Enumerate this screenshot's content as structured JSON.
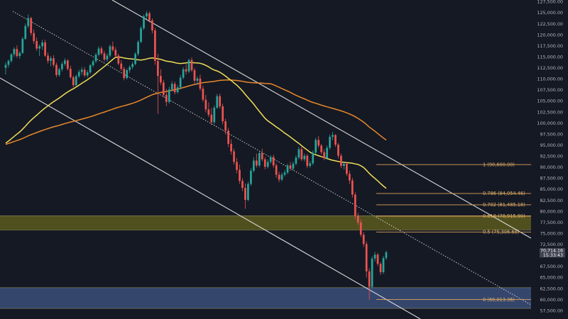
{
  "chart_data": {
    "type": "candlestick",
    "title": "",
    "xlabel": "",
    "ylabel": "",
    "ylim": [
      55600,
      127900
    ],
    "y_ticks": [
      {
        "value": 127500,
        "label": "127,500.00"
      },
      {
        "value": 125000,
        "label": "125,000.00"
      },
      {
        "value": 122500,
        "label": "122,500.00"
      },
      {
        "value": 120000,
        "label": "120,000.00"
      },
      {
        "value": 117500,
        "label": "117,500.00"
      },
      {
        "value": 115000,
        "label": "115,000.00"
      },
      {
        "value": 112500,
        "label": "112,500.00"
      },
      {
        "value": 110000,
        "label": "110,000.00"
      },
      {
        "value": 107500,
        "label": "107,500.00"
      },
      {
        "value": 105000,
        "label": "105,000.00"
      },
      {
        "value": 102500,
        "label": "102,500.00"
      },
      {
        "value": 100000,
        "label": "100,000.00"
      },
      {
        "value": 97500,
        "label": "97,500.00"
      },
      {
        "value": 95000,
        "label": "95,000.00"
      },
      {
        "value": 92500,
        "label": "92,500.00"
      },
      {
        "value": 90000,
        "label": "90,000.00"
      },
      {
        "value": 87500,
        "label": "87,500.00"
      },
      {
        "value": 85000,
        "label": "85,000.00"
      },
      {
        "value": 82500,
        "label": "82,500.00"
      },
      {
        "value": 80000,
        "label": "80,000.00"
      },
      {
        "value": 77500,
        "label": "77,500.00"
      },
      {
        "value": 75000,
        "label": "75,000.00"
      },
      {
        "value": 72500,
        "label": "72,500.00"
      },
      {
        "value": 67500,
        "label": "67,500.00"
      },
      {
        "value": 65000,
        "label": "65,000.00"
      },
      {
        "value": 62500,
        "label": "62,500.00"
      },
      {
        "value": 60000,
        "label": "60,000.00"
      },
      {
        "value": 57500,
        "label": "57,500.00"
      }
    ],
    "current_price": {
      "value": 70714.16,
      "label": "70,714.16",
      "countdown": "15:33:43",
      "color": "#26a69a"
    },
    "fib_levels": [
      {
        "ratio": 1,
        "price": 90600.0,
        "label": "1 (90,600.00)"
      },
      {
        "ratio": 0.786,
        "price": 84054.46,
        "label": "0.786 (84,054.46)"
      },
      {
        "ratio": 0.702,
        "price": 81485.18,
        "label": "0.702 (81,485.18)"
      },
      {
        "ratio": 0.618,
        "price": 78915.9,
        "label": "0.618 (78,915.90)"
      },
      {
        "ratio": 0.5,
        "price": 75306.68,
        "label": "0.5 (75,306.68)"
      },
      {
        "ratio": 0,
        "price": 60013.36,
        "label": "0 (60,013.36)"
      }
    ],
    "zones": [
      {
        "name": "resistance-zone",
        "from": 75800,
        "to": 79000,
        "color": "#5b5a1e"
      },
      {
        "name": "support-zone",
        "from": 58000,
        "to": 62700,
        "color": "#3b4f7a"
      }
    ],
    "colors": {
      "up": "#26a69a",
      "down": "#ef5350",
      "background": "#151924",
      "ma_fast": "#f0de58",
      "ma_slow": "#e8892a",
      "fib": "#e0a35a",
      "channel": "#d9d9d9"
    },
    "candles": [
      [
        112500,
        113800,
        111000,
        113200
      ],
      [
        113200,
        114400,
        112600,
        114100
      ],
      [
        114100,
        115800,
        113700,
        115600
      ],
      [
        115600,
        117200,
        115000,
        116800
      ],
      [
        116800,
        117600,
        114800,
        115200
      ],
      [
        115200,
        116300,
        114600,
        115900
      ],
      [
        115900,
        119500,
        115700,
        119100
      ],
      [
        119100,
        122600,
        118900,
        122000
      ],
      [
        122000,
        124600,
        121500,
        123800
      ],
      [
        123800,
        124100,
        119800,
        120400
      ],
      [
        120400,
        121200,
        118000,
        118600
      ],
      [
        118600,
        119400,
        116400,
        116900
      ],
      [
        116900,
        117800,
        115200,
        117400
      ],
      [
        117400,
        118900,
        116600,
        118300
      ],
      [
        118300,
        118900,
        115000,
        115300
      ],
      [
        115300,
        116000,
        113500,
        114100
      ],
      [
        114100,
        115200,
        112900,
        114700
      ],
      [
        114700,
        115400,
        112700,
        113200
      ],
      [
        113200,
        113700,
        110400,
        110900
      ],
      [
        110900,
        112600,
        110500,
        112200
      ],
      [
        112200,
        113900,
        111700,
        113400
      ],
      [
        113400,
        114700,
        112900,
        114200
      ],
      [
        114200,
        114500,
        111900,
        112300
      ],
      [
        112300,
        113000,
        110000,
        110400
      ],
      [
        110400,
        110800,
        108100,
        108600
      ],
      [
        108600,
        111000,
        108300,
        110600
      ],
      [
        110600,
        112100,
        110200,
        111600
      ],
      [
        111600,
        112700,
        110900,
        112100
      ],
      [
        112100,
        112700,
        110400,
        110800
      ],
      [
        110800,
        112000,
        110300,
        111500
      ],
      [
        111500,
        113400,
        111100,
        113100
      ],
      [
        113100,
        114400,
        112700,
        114000
      ],
      [
        114000,
        115900,
        113600,
        115500
      ],
      [
        115500,
        117400,
        115100,
        116900
      ],
      [
        116900,
        117400,
        115400,
        115800
      ],
      [
        115800,
        116400,
        114000,
        114400
      ],
      [
        114400,
        115800,
        113900,
        115300
      ],
      [
        115300,
        117800,
        114900,
        117400
      ],
      [
        117400,
        118500,
        116200,
        116600
      ],
      [
        116600,
        117200,
        114900,
        115300
      ],
      [
        115300,
        115700,
        113100,
        113500
      ],
      [
        113500,
        114300,
        111800,
        112300
      ],
      [
        112300,
        112800,
        109700,
        110200
      ],
      [
        110200,
        112400,
        109900,
        112000
      ],
      [
        112000,
        113100,
        111400,
        112700
      ],
      [
        112700,
        113900,
        112200,
        113400
      ],
      [
        113400,
        116100,
        113100,
        115700
      ],
      [
        115700,
        118800,
        115200,
        118400
      ],
      [
        118400,
        122000,
        118100,
        121500
      ],
      [
        121500,
        124600,
        121100,
        124200
      ],
      [
        124200,
        125400,
        123600,
        124900
      ],
      [
        124900,
        125300,
        122800,
        123300
      ],
      [
        123300,
        123700,
        120300,
        121000
      ],
      [
        121000,
        121600,
        113200,
        114100
      ],
      [
        114100,
        115700,
        102100,
        110700
      ],
      [
        110700,
        112200,
        108600,
        109200
      ],
      [
        109200,
        109800,
        105900,
        106400
      ],
      [
        106400,
        107800,
        103800,
        104800
      ],
      [
        104800,
        108200,
        104400,
        107600
      ],
      [
        107600,
        109500,
        107100,
        108900
      ],
      [
        108900,
        109400,
        106500,
        107000
      ],
      [
        107000,
        108600,
        106600,
        108100
      ],
      [
        108100,
        110900,
        107600,
        110300
      ],
      [
        110300,
        112700,
        109900,
        112200
      ],
      [
        112200,
        113400,
        111000,
        111700
      ],
      [
        111700,
        114600,
        111300,
        114300
      ],
      [
        114300,
        114900,
        111600,
        112000
      ],
      [
        112000,
        112500,
        109000,
        109600
      ],
      [
        109600,
        110600,
        108600,
        110100
      ],
      [
        110100,
        111000,
        107300,
        107800
      ],
      [
        107800,
        108500,
        104800,
        105300
      ],
      [
        105300,
        106400,
        102400,
        103100
      ],
      [
        103100,
        104700,
        101400,
        101900
      ],
      [
        101900,
        103400,
        99600,
        100200
      ],
      [
        100200,
        104000,
        99800,
        103500
      ],
      [
        103500,
        106600,
        103200,
        106100
      ],
      [
        106100,
        106700,
        103300,
        103800
      ],
      [
        103800,
        104400,
        99700,
        100400
      ],
      [
        100400,
        101000,
        97400,
        98300
      ],
      [
        98300,
        98900,
        94600,
        95300
      ],
      [
        95300,
        96300,
        92900,
        93600
      ],
      [
        93600,
        94200,
        90600,
        91200
      ],
      [
        91200,
        92100,
        88600,
        89400
      ],
      [
        89400,
        90600,
        86200,
        86900
      ],
      [
        86900,
        87500,
        84600,
        85300
      ],
      [
        85300,
        86300,
        80600,
        82600
      ],
      [
        82600,
        86700,
        82300,
        86200
      ],
      [
        86200,
        89800,
        85800,
        89200
      ],
      [
        89200,
        92200,
        88800,
        91500
      ],
      [
        91500,
        93100,
        89900,
        90400
      ],
      [
        90400,
        93700,
        90000,
        93200
      ],
      [
        93200,
        94200,
        91300,
        91800
      ],
      [
        91800,
        92300,
        89500,
        90100
      ],
      [
        90100,
        91700,
        89700,
        91200
      ],
      [
        91200,
        92700,
        90800,
        92300
      ],
      [
        92300,
        92800,
        89900,
        90400
      ],
      [
        90400,
        90900,
        87600,
        88300
      ],
      [
        88300,
        89000,
        86600,
        87200
      ],
      [
        87200,
        88800,
        86800,
        88300
      ],
      [
        88300,
        89400,
        87900,
        88800
      ],
      [
        88800,
        90800,
        88400,
        90400
      ],
      [
        90400,
        91200,
        89200,
        89700
      ],
      [
        89700,
        91300,
        89300,
        90800
      ],
      [
        90800,
        92700,
        90400,
        92200
      ],
      [
        92200,
        94600,
        91800,
        94100
      ],
      [
        94100,
        94600,
        91400,
        91800
      ],
      [
        91800,
        93100,
        91300,
        92600
      ],
      [
        92600,
        93000,
        89800,
        90300
      ],
      [
        90300,
        91400,
        89900,
        90900
      ],
      [
        90900,
        93800,
        90500,
        93300
      ],
      [
        93300,
        96700,
        92900,
        96200
      ],
      [
        96200,
        97100,
        94400,
        94900
      ],
      [
        94900,
        95300,
        92900,
        93400
      ],
      [
        93400,
        94100,
        91600,
        92100
      ],
      [
        92100,
        94900,
        91700,
        94400
      ],
      [
        94400,
        97400,
        94000,
        96900
      ],
      [
        96900,
        98000,
        96100,
        97300
      ],
      [
        97300,
        97500,
        94600,
        95100
      ],
      [
        95100,
        95500,
        92000,
        92600
      ],
      [
        92600,
        93100,
        89800,
        90300
      ],
      [
        90300,
        91300,
        89500,
        90800
      ],
      [
        90800,
        91200,
        88000,
        88500
      ],
      [
        88500,
        89200,
        86200,
        87000
      ],
      [
        87000,
        87600,
        83100,
        83800
      ],
      [
        83800,
        84300,
        78200,
        79000
      ],
      [
        79000,
        79700,
        76900,
        77500
      ],
      [
        77500,
        78200,
        74200,
        74700
      ],
      [
        74700,
        75300,
        71900,
        72600
      ],
      [
        72600,
        73200,
        65000,
        66400
      ],
      [
        66400,
        67100,
        60000,
        62900
      ],
      [
        62900,
        69800,
        62500,
        69300
      ],
      [
        69300,
        70800,
        68600,
        70200
      ],
      [
        70200,
        70600,
        67600,
        68100
      ],
      [
        68100,
        68500,
        65600,
        66200
      ],
      [
        66200,
        69900,
        65800,
        69400
      ],
      [
        69400,
        71100,
        69000,
        70714
      ]
    ]
  }
}
